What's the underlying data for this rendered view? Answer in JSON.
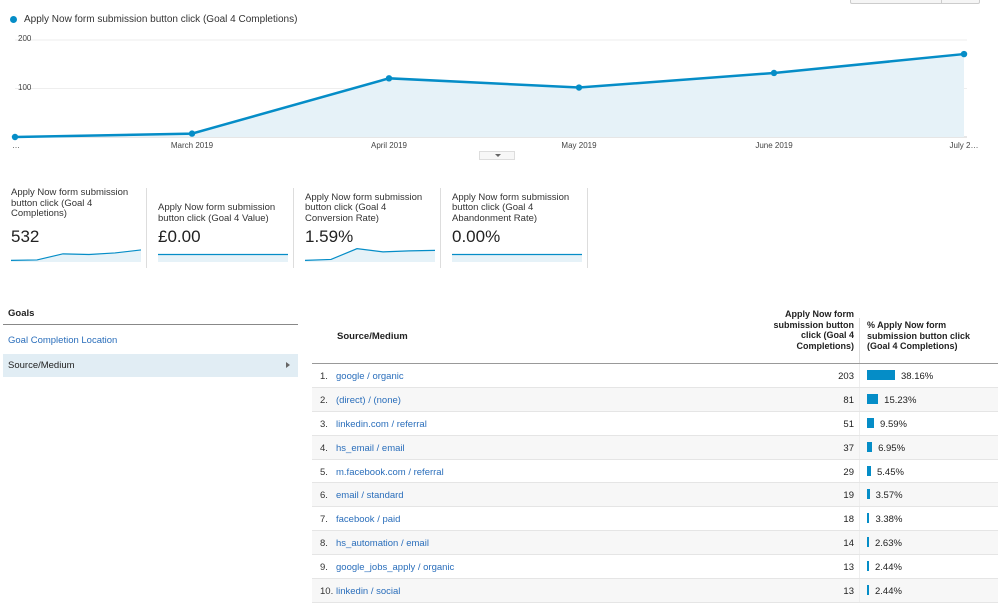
{
  "legend": {
    "label": "Apply Now form submission button click (Goal 4 Completions)",
    "color": "#058dc7"
  },
  "chart_data": {
    "type": "area",
    "x": [
      "…",
      "March 2019",
      "April 2019",
      "May 2019",
      "June 2019",
      "July 2…"
    ],
    "series": [
      {
        "name": "Apply Now form submission button click (Goal 4 Completions)",
        "values": [
          0,
          7,
          121,
          102,
          132,
          171
        ]
      }
    ],
    "ylim": [
      0,
      200
    ],
    "yticks": [
      "200",
      "100"
    ],
    "color": "#058dc7",
    "fill": "#e6f2f8"
  },
  "metrics": [
    {
      "label": "Apply Now form submission button click (Goal 4 Completions)",
      "value": "532",
      "spark": [
        0.05,
        0.08,
        0.55,
        0.5,
        0.62,
        0.85
      ]
    },
    {
      "label": "Apply Now form submission button click (Goal 4 Value)",
      "value": "£0.00",
      "spark": [
        0.5,
        0.5,
        0.5,
        0.5,
        0.5,
        0.5
      ]
    },
    {
      "label": "Apply Now form submission button click (Goal 4 Conversion Rate)",
      "value": "1.59%",
      "spark": [
        0.05,
        0.12,
        0.95,
        0.7,
        0.78,
        0.82
      ]
    },
    {
      "label": "Apply Now form submission button click (Goal 4 Abandonment Rate)",
      "value": "0.00%",
      "spark": [
        0.5,
        0.5,
        0.5,
        0.5,
        0.5,
        0.5
      ]
    }
  ],
  "goals": {
    "title": "Goals",
    "link": "Goal Completion Location",
    "selected": "Source/Medium"
  },
  "table": {
    "col_source": "Source/Medium",
    "col_count": "Apply Now form submission button click (Goal 4 Completions)",
    "col_pct": "% Apply Now form submission button click (Goal 4 Completions)",
    "rows": [
      {
        "num": "1.",
        "source": "google / organic",
        "count": "203",
        "pct": "38.16%",
        "pct_value": 38.16
      },
      {
        "num": "2.",
        "source": "(direct) / (none)",
        "count": "81",
        "pct": "15.23%",
        "pct_value": 15.23
      },
      {
        "num": "3.",
        "source": "linkedin.com / referral",
        "count": "51",
        "pct": "9.59%",
        "pct_value": 9.59
      },
      {
        "num": "4.",
        "source": "hs_email / email",
        "count": "37",
        "pct": "6.95%",
        "pct_value": 6.95
      },
      {
        "num": "5.",
        "source": "m.facebook.com / referral",
        "count": "29",
        "pct": "5.45%",
        "pct_value": 5.45
      },
      {
        "num": "6.",
        "source": "email / standard",
        "count": "19",
        "pct": "3.57%",
        "pct_value": 3.57
      },
      {
        "num": "7.",
        "source": "facebook / paid",
        "count": "18",
        "pct": "3.38%",
        "pct_value": 3.38
      },
      {
        "num": "8.",
        "source": "hs_automation / email",
        "count": "14",
        "pct": "2.63%",
        "pct_value": 2.63
      },
      {
        "num": "9.",
        "source": "google_jobs_apply / organic",
        "count": "13",
        "pct": "2.44%",
        "pct_value": 2.44
      },
      {
        "num": "10.",
        "source": "linkedin / social",
        "count": "13",
        "pct": "2.44%",
        "pct_value": 2.44
      }
    ]
  }
}
